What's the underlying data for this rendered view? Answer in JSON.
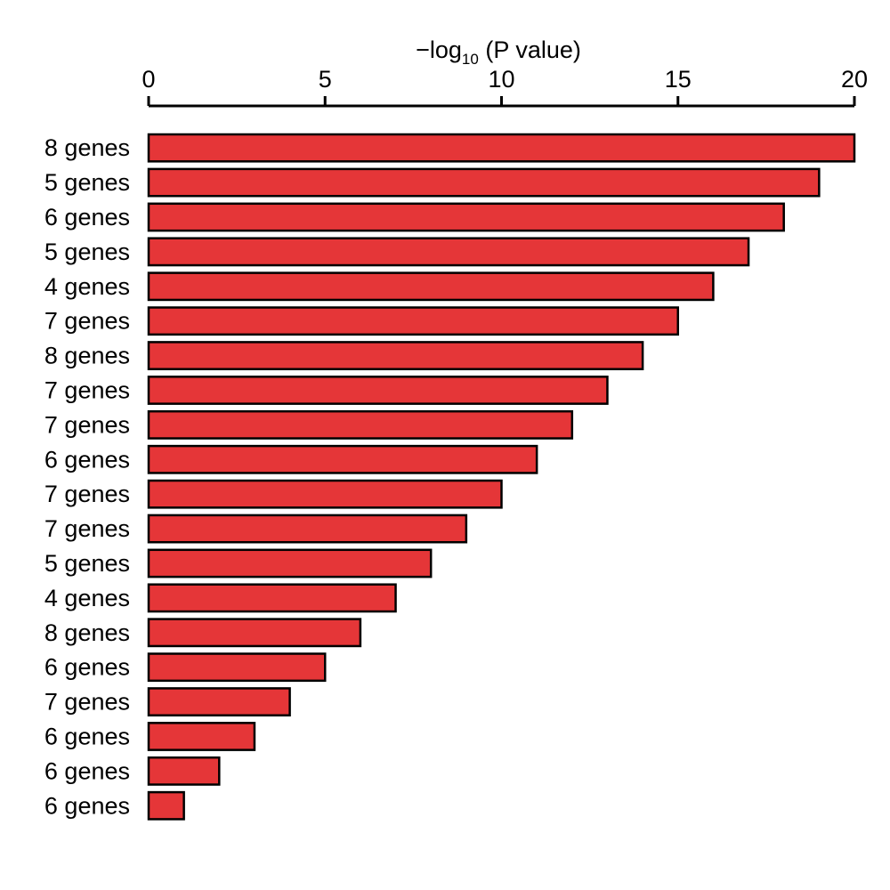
{
  "chart_data": {
    "type": "bar",
    "orientation": "horizontal",
    "xaxis_position": "top",
    "xlabel": {
      "prefix": "−log",
      "subscript": "10",
      "suffix": " (P value)"
    },
    "xlim": [
      0,
      20
    ],
    "xticks": [
      0,
      5,
      10,
      15,
      20
    ],
    "grid": false,
    "bar_color": "#e53638",
    "edge_color": "#000000",
    "categories": [
      "8 genes",
      "5 genes",
      "6 genes",
      "5 genes",
      "4 genes",
      "7 genes",
      "8 genes",
      "7 genes",
      "7 genes",
      "6 genes",
      "7 genes",
      "7 genes",
      "5 genes",
      "4 genes",
      "8 genes",
      "6 genes",
      "7 genes",
      "6 genes",
      "6 genes",
      "6 genes"
    ],
    "values": [
      20,
      19,
      18,
      17,
      16,
      15,
      14,
      13,
      12,
      11,
      10,
      9,
      8,
      7,
      6,
      5,
      4,
      3,
      2,
      1
    ]
  }
}
